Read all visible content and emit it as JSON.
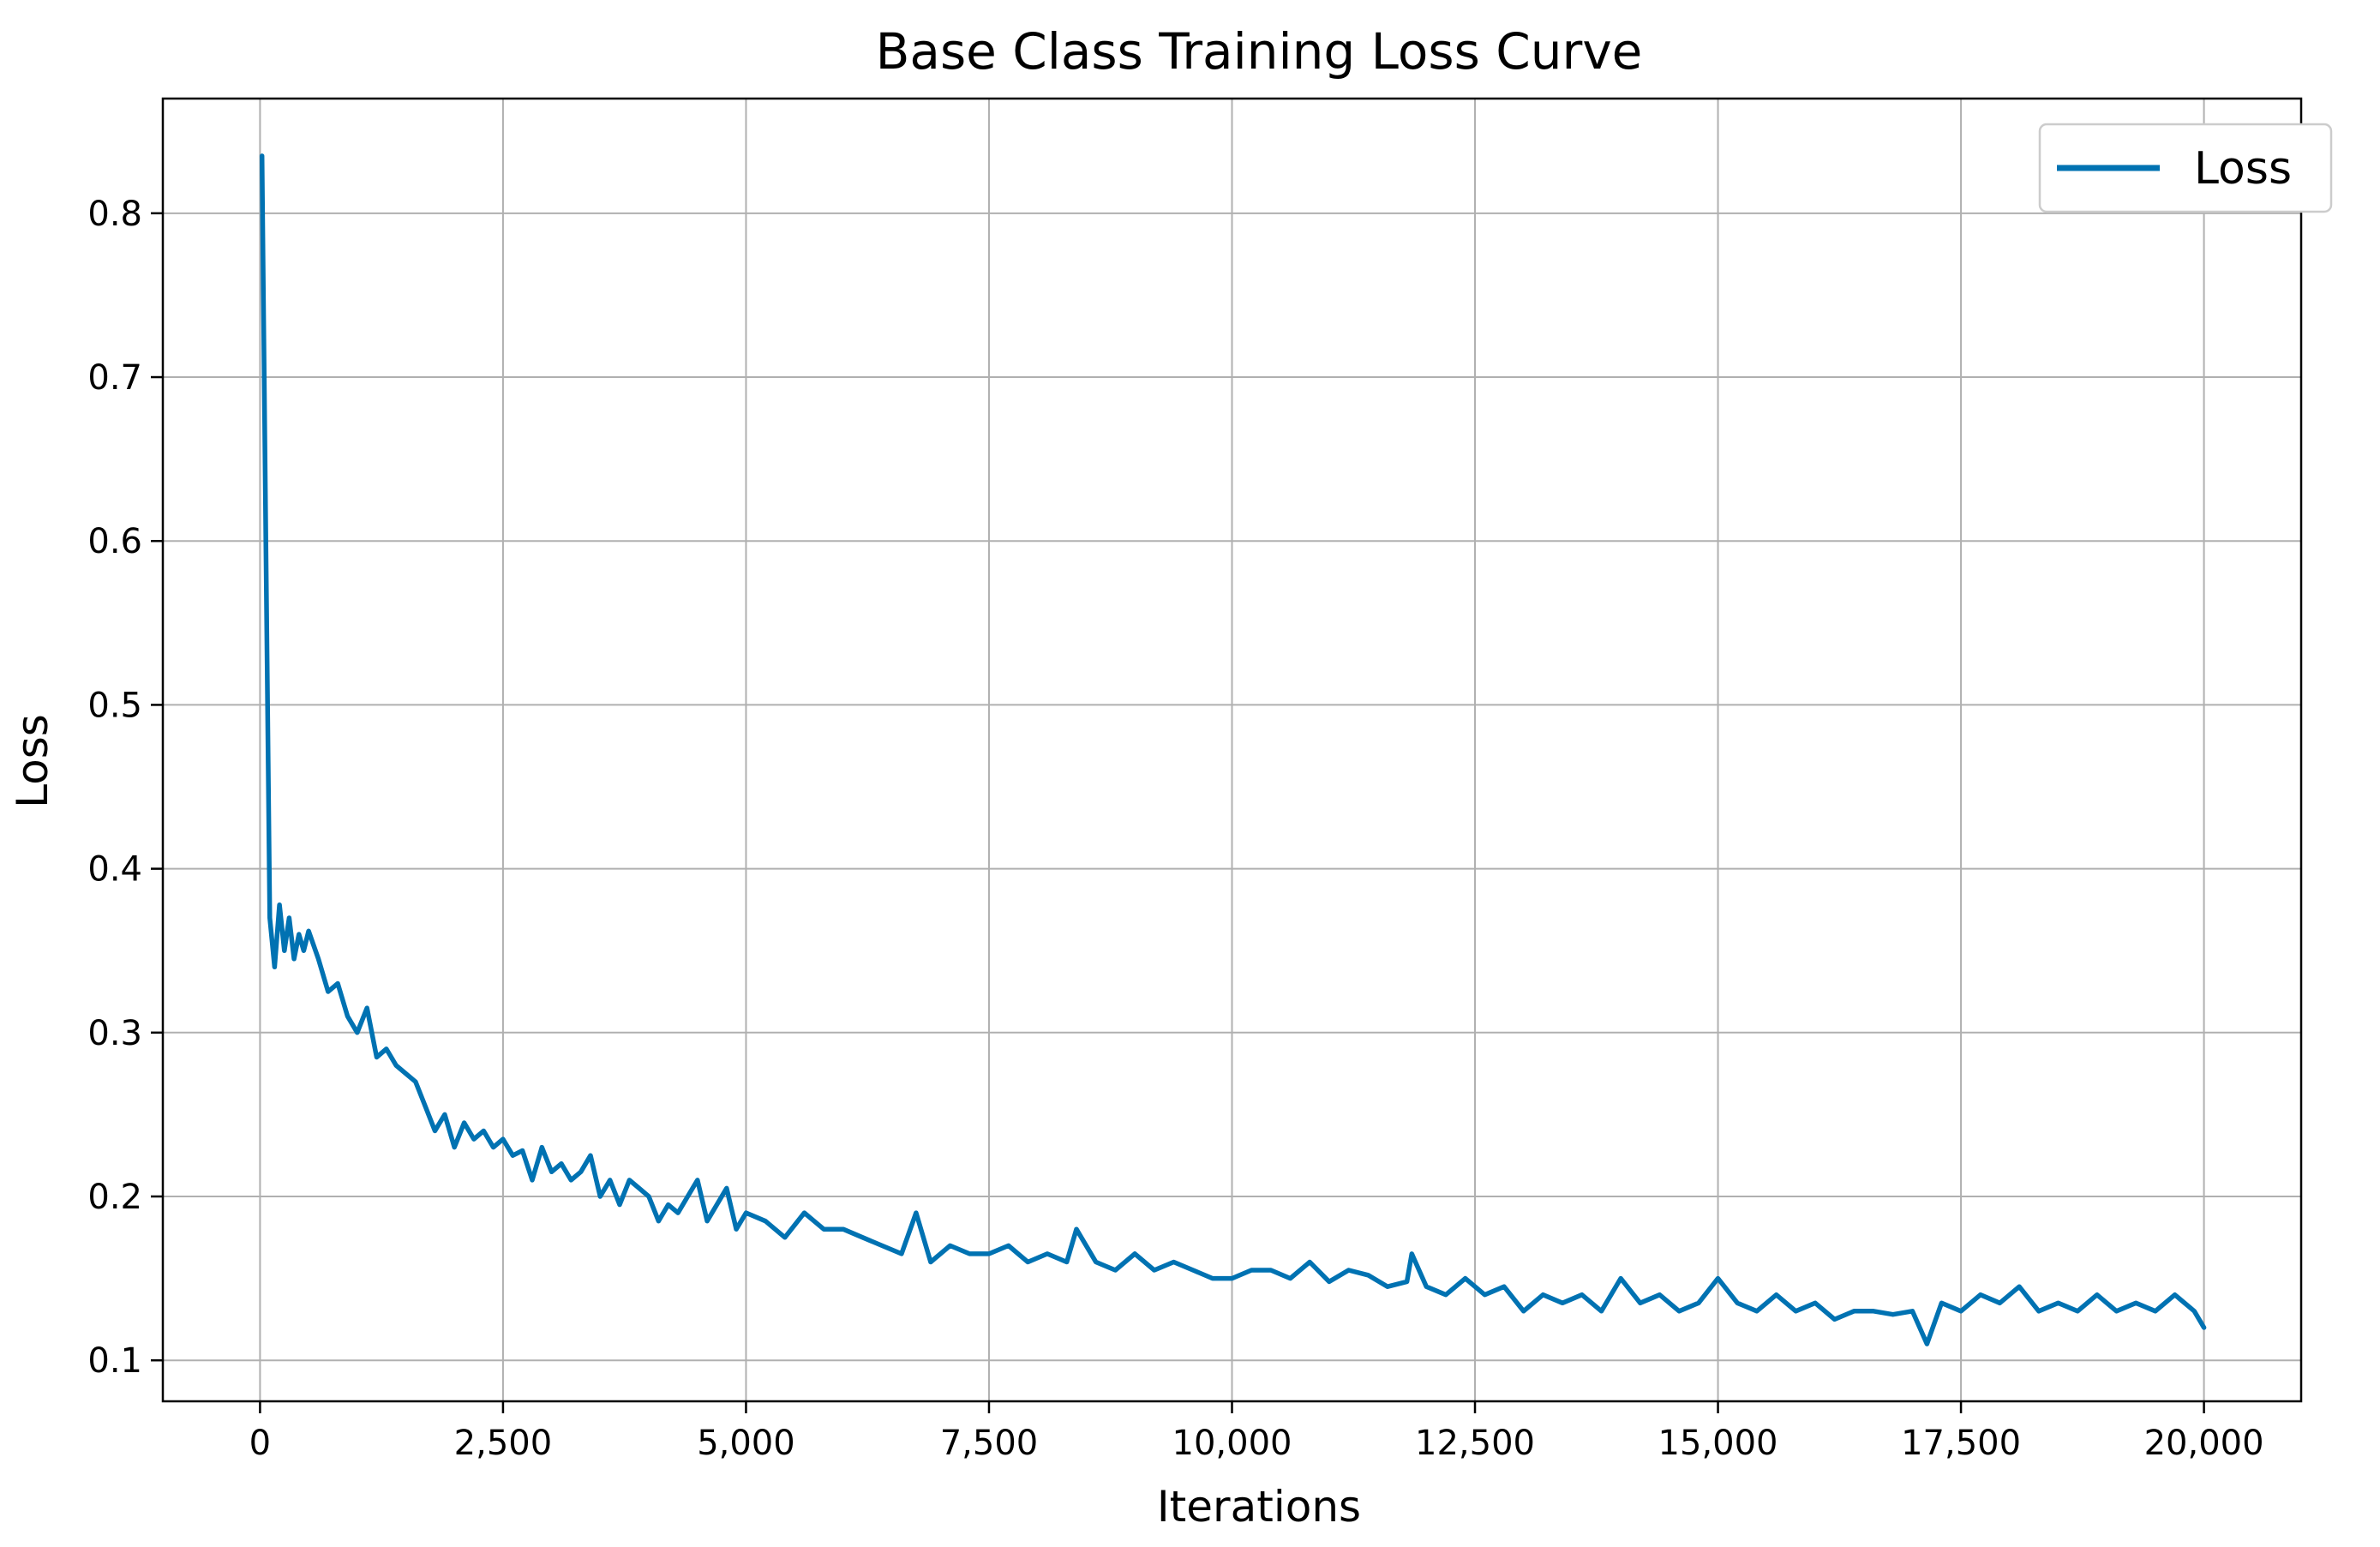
{
  "chart_data": {
    "type": "line",
    "title": "Base Class Training Loss Curve",
    "xlabel": "Iterations",
    "ylabel": "Loss",
    "xlim": [
      -1000,
      21000
    ],
    "ylim": [
      0.075,
      0.87
    ],
    "grid": true,
    "legend_position": "top-right",
    "x_ticks": [
      0,
      2500,
      5000,
      7500,
      10000,
      12500,
      15000,
      17500,
      20000
    ],
    "x_tick_labels": [
      "0",
      "2,500",
      "5,000",
      "7,500",
      "10,000",
      "12,500",
      "15,000",
      "17,500",
      "20,000"
    ],
    "y_ticks": [
      0.1,
      0.2,
      0.3,
      0.4,
      0.5,
      0.6,
      0.7,
      0.8
    ],
    "y_tick_labels": [
      "0.1",
      "0.2",
      "0.3",
      "0.4",
      "0.5",
      "0.6",
      "0.7",
      "0.8"
    ],
    "series": [
      {
        "name": "Loss",
        "color": "#0072B2",
        "x": [
          20,
          60,
          100,
          150,
          200,
          250,
          300,
          350,
          400,
          450,
          500,
          600,
          700,
          800,
          900,
          1000,
          1100,
          1200,
          1300,
          1400,
          1500,
          1600,
          1700,
          1800,
          1900,
          2000,
          2100,
          2200,
          2300,
          2400,
          2500,
          2600,
          2700,
          2800,
          2900,
          3000,
          3100,
          3200,
          3300,
          3400,
          3500,
          3600,
          3700,
          3800,
          3900,
          4000,
          4100,
          4200,
          4300,
          4400,
          4500,
          4600,
          4700,
          4800,
          4900,
          5000,
          5200,
          5400,
          5600,
          5800,
          6000,
          6200,
          6400,
          6600,
          6750,
          6900,
          7100,
          7300,
          7500,
          7700,
          7900,
          8100,
          8300,
          8400,
          8600,
          8800,
          9000,
          9200,
          9400,
          9600,
          9800,
          10000,
          10200,
          10400,
          10600,
          10800,
          11000,
          11200,
          11400,
          11600,
          11800,
          11850,
          12000,
          12200,
          12400,
          12600,
          12800,
          13000,
          13200,
          13400,
          13600,
          13800,
          14000,
          14200,
          14400,
          14600,
          14800,
          15000,
          15200,
          15400,
          15600,
          15800,
          16000,
          16200,
          16400,
          16600,
          16800,
          17000,
          17150,
          17300,
          17500,
          17700,
          17900,
          18100,
          18300,
          18500,
          18700,
          18900,
          19100,
          19300,
          19500,
          19700,
          19900,
          20000
        ],
        "values": [
          0.835,
          0.6,
          0.37,
          0.34,
          0.378,
          0.35,
          0.37,
          0.345,
          0.36,
          0.35,
          0.362,
          0.345,
          0.325,
          0.33,
          0.31,
          0.3,
          0.315,
          0.285,
          0.29,
          0.28,
          0.275,
          0.27,
          0.255,
          0.24,
          0.25,
          0.23,
          0.245,
          0.235,
          0.24,
          0.23,
          0.235,
          0.225,
          0.228,
          0.21,
          0.23,
          0.215,
          0.22,
          0.21,
          0.215,
          0.225,
          0.2,
          0.21,
          0.195,
          0.21,
          0.205,
          0.2,
          0.185,
          0.195,
          0.19,
          0.2,
          0.21,
          0.185,
          0.195,
          0.205,
          0.18,
          0.19,
          0.185,
          0.175,
          0.19,
          0.18,
          0.18,
          0.175,
          0.17,
          0.165,
          0.19,
          0.16,
          0.17,
          0.165,
          0.165,
          0.17,
          0.16,
          0.165,
          0.16,
          0.18,
          0.16,
          0.155,
          0.165,
          0.155,
          0.16,
          0.155,
          0.15,
          0.15,
          0.155,
          0.155,
          0.15,
          0.16,
          0.148,
          0.155,
          0.152,
          0.145,
          0.148,
          0.165,
          0.145,
          0.14,
          0.15,
          0.14,
          0.145,
          0.13,
          0.14,
          0.135,
          0.14,
          0.13,
          0.15,
          0.135,
          0.14,
          0.13,
          0.135,
          0.15,
          0.135,
          0.13,
          0.14,
          0.13,
          0.135,
          0.125,
          0.13,
          0.13,
          0.128,
          0.13,
          0.11,
          0.135,
          0.13,
          0.14,
          0.135,
          0.145,
          0.13,
          0.135,
          0.13,
          0.14,
          0.13,
          0.135,
          0.13,
          0.14,
          0.13,
          0.12
        ]
      }
    ]
  }
}
